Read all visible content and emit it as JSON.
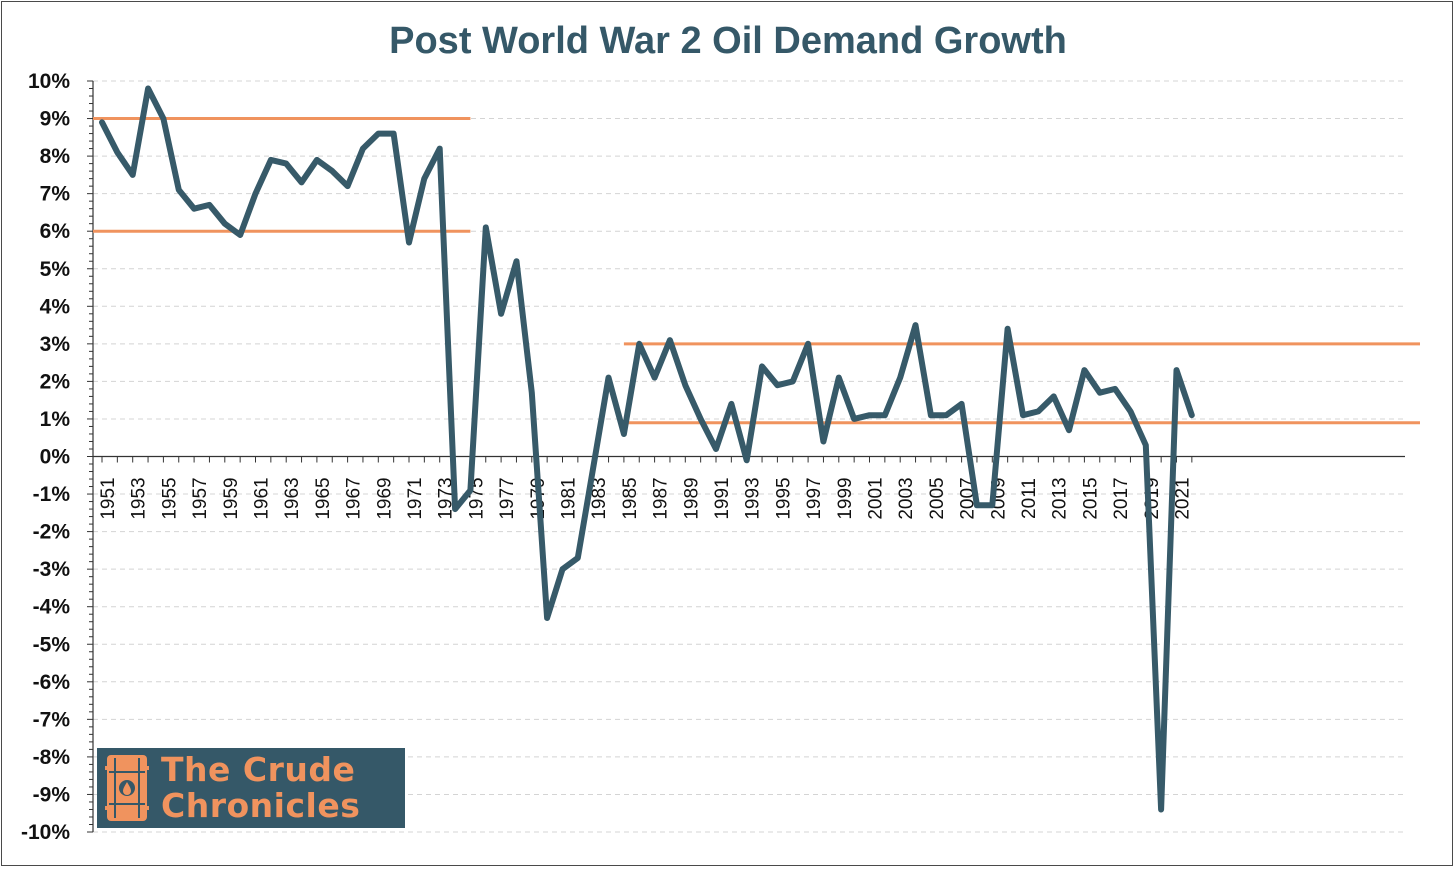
{
  "chart_data": {
    "type": "line",
    "title": "Post World War 2 Oil Demand Growth",
    "xlabel": "",
    "ylabel": "",
    "ylim": [
      -10,
      10
    ],
    "y_ticks": [
      "10%",
      "9%",
      "8%",
      "7%",
      "6%",
      "5%",
      "4%",
      "3%",
      "2%",
      "1%",
      "0%",
      "-1%",
      "-2%",
      "-3%",
      "-4%",
      "-5%",
      "-6%",
      "-7%",
      "-8%",
      "-9%",
      "-10%"
    ],
    "x_tick_labels": [
      "1951",
      "1953",
      "1955",
      "1957",
      "1959",
      "1961",
      "1963",
      "1965",
      "1967",
      "1969",
      "1971",
      "1973",
      "1975",
      "1977",
      "1979",
      "1981",
      "1983",
      "1985",
      "1987",
      "1989",
      "1991",
      "1993",
      "1995",
      "1997",
      "1999",
      "2001",
      "2003",
      "2005",
      "2007",
      "2009",
      "2011",
      "2013",
      "2015",
      "2017",
      "2019",
      "2021"
    ],
    "grid": true,
    "series": [
      {
        "color": "#375a69",
        "x": [
          1951,
          1952,
          1953,
          1954,
          1955,
          1956,
          1957,
          1958,
          1959,
          1960,
          1961,
          1962,
          1963,
          1964,
          1965,
          1966,
          1967,
          1968,
          1969,
          1970,
          1971,
          1972,
          1973,
          1974,
          1975,
          1976,
          1977,
          1978,
          1979,
          1980,
          1981,
          1982,
          1983,
          1984,
          1985,
          1986,
          1987,
          1988,
          1989,
          1990,
          1991,
          1992,
          1993,
          1994,
          1995,
          1996,
          1997,
          1998,
          1999,
          2000,
          2001,
          2002,
          2003,
          2004,
          2005,
          2006,
          2007,
          2008,
          2009,
          2010,
          2011,
          2012,
          2013,
          2014,
          2015,
          2016,
          2017,
          2018,
          2019,
          2020,
          2021,
          2022
        ],
        "values": [
          8.9,
          8.1,
          7.5,
          9.8,
          9.0,
          7.1,
          6.6,
          6.7,
          6.2,
          5.9,
          7.0,
          7.9,
          7.8,
          7.3,
          7.9,
          7.6,
          7.2,
          8.2,
          8.6,
          8.6,
          5.7,
          7.4,
          8.2,
          -1.4,
          -0.9,
          6.1,
          3.8,
          5.2,
          1.7,
          -4.3,
          -3.0,
          -2.7,
          -0.3,
          2.1,
          0.6,
          3.0,
          2.1,
          3.1,
          1.9,
          1.0,
          0.2,
          1.4,
          -0.1,
          2.4,
          1.9,
          2.0,
          3.0,
          0.4,
          2.1,
          1.0,
          1.1,
          1.1,
          2.1,
          3.5,
          1.1,
          1.1,
          1.4,
          -1.3,
          -1.3,
          3.4,
          1.1,
          1.2,
          1.6,
          0.7,
          2.3,
          1.7,
          1.8,
          1.2,
          0.3,
          -9.4,
          2.3,
          1.1
        ]
      }
    ],
    "reference_lines": [
      {
        "color": "#f0935e",
        "y": 9.0,
        "x_start": 1951,
        "x_end": 1975
      },
      {
        "color": "#f0935e",
        "y": 6.0,
        "x_start": 1951,
        "x_end": 1975
      },
      {
        "color": "#f0935e",
        "y": 3.0,
        "x_start": 1985,
        "x_end": 2022
      },
      {
        "color": "#f0935e",
        "y": 0.9,
        "x_start": 1985,
        "x_end": 2022
      }
    ]
  },
  "logo": {
    "line1": "The Crude",
    "line2": "Chronicles"
  },
  "colors": {
    "title": "#355868",
    "line": "#375a69",
    "reference": "#f0935e",
    "logo_bg": "#355868",
    "logo_text": "#f0935e"
  }
}
